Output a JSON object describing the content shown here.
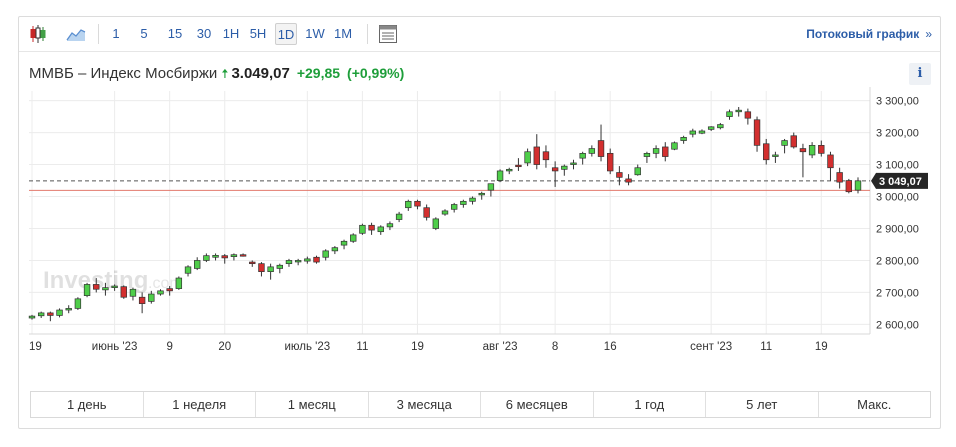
{
  "toolbar": {
    "chart_icons": [
      {
        "icon": "candlestick-chart-icon"
      },
      {
        "icon": "area-chart-icon"
      }
    ],
    "intervals": [
      "1",
      "5",
      "15",
      "30",
      "1H",
      "5H",
      "1D",
      "1W",
      "1M"
    ],
    "active_interval": "1D",
    "settings_icon": "chart-settings-icon",
    "stream_label": "Потоковый график",
    "stream_arrow": "»"
  },
  "header": {
    "name": "ММВБ – Индекс Мосбиржи",
    "arrow": "🠅",
    "price": "3.049,07",
    "change": "+29,85",
    "change_pct": "(+0,99%)",
    "info_label": "i"
  },
  "chart_data": {
    "type": "candlestick",
    "watermark": "Investing",
    "watermark_suffix": ".com",
    "current_price_label": "3 049,07",
    "current_price": 3049.07,
    "previous_close": 3019.22,
    "colors": {
      "up": "#4fce4a",
      "down": "#d32f2f",
      "price_line": "#555555",
      "prev_close_line": "#e37a6d",
      "grid": "#ececec"
    },
    "ylim": [
      2570,
      3330
    ],
    "yticks": [
      {
        "value": 3300,
        "label": "3 300,00"
      },
      {
        "value": 3200,
        "label": "3 200,00"
      },
      {
        "value": 3100,
        "label": "3 100,00"
      },
      {
        "value": 3000,
        "label": "3 000,00"
      },
      {
        "value": 2900,
        "label": "2 900,00"
      },
      {
        "value": 2800,
        "label": "2 800,00"
      },
      {
        "value": 2700,
        "label": "2 700,00"
      },
      {
        "value": 2600,
        "label": "2 600,00"
      }
    ],
    "xticks": [
      {
        "index": 0,
        "label": "19"
      },
      {
        "index": 9,
        "label": "июнь '23"
      },
      {
        "index": 15,
        "label": "9"
      },
      {
        "index": 21,
        "label": "20"
      },
      {
        "index": 30,
        "label": "июль '23"
      },
      {
        "index": 36,
        "label": "11"
      },
      {
        "index": 42,
        "label": "19"
      },
      {
        "index": 51,
        "label": "авг '23"
      },
      {
        "index": 57,
        "label": "8"
      },
      {
        "index": 63,
        "label": "16"
      },
      {
        "index": 74,
        "label": "сент '23"
      },
      {
        "index": 80,
        "label": "11"
      },
      {
        "index": 86,
        "label": "19"
      }
    ],
    "candles": [
      [
        2620,
        2630,
        2615,
        2626
      ],
      [
        2627,
        2640,
        2620,
        2636
      ],
      [
        2636,
        2640,
        2610,
        2628
      ],
      [
        2628,
        2650,
        2622,
        2645
      ],
      [
        2645,
        2660,
        2635,
        2650
      ],
      [
        2650,
        2685,
        2645,
        2680
      ],
      [
        2690,
        2730,
        2685,
        2725
      ],
      [
        2725,
        2745,
        2700,
        2710
      ],
      [
        2708,
        2730,
        2690,
        2715
      ],
      [
        2715,
        2725,
        2705,
        2720
      ],
      [
        2718,
        2722,
        2680,
        2685
      ],
      [
        2688,
        2715,
        2675,
        2710
      ],
      [
        2685,
        2700,
        2635,
        2665
      ],
      [
        2672,
        2705,
        2665,
        2695
      ],
      [
        2695,
        2710,
        2690,
        2705
      ],
      [
        2712,
        2720,
        2690,
        2705
      ],
      [
        2712,
        2750,
        2708,
        2745
      ],
      [
        2760,
        2785,
        2750,
        2780
      ],
      [
        2775,
        2810,
        2770,
        2800
      ],
      [
        2800,
        2822,
        2795,
        2815
      ],
      [
        2810,
        2822,
        2800,
        2816
      ],
      [
        2815,
        2820,
        2790,
        2808
      ],
      [
        2812,
        2822,
        2800,
        2818
      ],
      [
        2818,
        2822,
        2812,
        2815
      ],
      [
        2795,
        2800,
        2780,
        2790
      ],
      [
        2790,
        2795,
        2750,
        2765
      ],
      [
        2765,
        2790,
        2740,
        2780
      ],
      [
        2775,
        2790,
        2760,
        2785
      ],
      [
        2790,
        2805,
        2780,
        2800
      ],
      [
        2798,
        2805,
        2785,
        2800
      ],
      [
        2798,
        2812,
        2790,
        2805
      ],
      [
        2810,
        2815,
        2790,
        2795
      ],
      [
        2810,
        2835,
        2800,
        2830
      ],
      [
        2830,
        2845,
        2820,
        2840
      ],
      [
        2848,
        2865,
        2835,
        2860
      ],
      [
        2860,
        2885,
        2855,
        2880
      ],
      [
        2885,
        2915,
        2880,
        2910
      ],
      [
        2910,
        2918,
        2880,
        2895
      ],
      [
        2890,
        2910,
        2880,
        2905
      ],
      [
        2905,
        2922,
        2895,
        2915
      ],
      [
        2928,
        2952,
        2920,
        2945
      ],
      [
        2965,
        2990,
        2955,
        2985
      ],
      [
        2985,
        2990,
        2960,
        2970
      ],
      [
        2965,
        2975,
        2925,
        2935
      ],
      [
        2900,
        2935,
        2895,
        2930
      ],
      [
        2945,
        2960,
        2940,
        2955
      ],
      [
        2960,
        2980,
        2950,
        2975
      ],
      [
        2975,
        2990,
        2965,
        2985
      ],
      [
        2985,
        3000,
        2975,
        2995
      ],
      [
        3005,
        3015,
        2990,
        3010
      ],
      [
        3020,
        3040,
        3000,
        3040
      ],
      [
        3050,
        3085,
        3045,
        3080
      ],
      [
        3080,
        3090,
        3070,
        3085
      ],
      [
        3098,
        3120,
        3080,
        3095
      ],
      [
        3105,
        3150,
        3095,
        3140
      ],
      [
        3155,
        3195,
        3085,
        3100
      ],
      [
        3140,
        3160,
        3090,
        3115
      ],
      [
        3090,
        3110,
        3030,
        3080
      ],
      [
        3085,
        3100,
        3065,
        3095
      ],
      [
        3100,
        3115,
        3085,
        3105
      ],
      [
        3120,
        3140,
        3100,
        3135
      ],
      [
        3135,
        3160,
        3125,
        3150
      ],
      [
        3175,
        3225,
        3110,
        3125
      ],
      [
        3135,
        3150,
        3070,
        3080
      ],
      [
        3075,
        3095,
        3035,
        3060
      ],
      [
        3055,
        3070,
        3035,
        3045
      ],
      [
        3068,
        3100,
        3065,
        3090
      ],
      [
        3125,
        3140,
        3105,
        3135
      ],
      [
        3135,
        3160,
        3120,
        3150
      ],
      [
        3155,
        3170,
        3110,
        3125
      ],
      [
        3148,
        3172,
        3145,
        3168
      ],
      [
        3175,
        3190,
        3165,
        3185
      ],
      [
        3195,
        3212,
        3185,
        3205
      ],
      [
        3198,
        3210,
        3195,
        3205
      ],
      [
        3210,
        3220,
        3205,
        3218
      ],
      [
        3215,
        3230,
        3210,
        3225
      ],
      [
        3250,
        3272,
        3240,
        3265
      ],
      [
        3265,
        3280,
        3250,
        3270
      ],
      [
        3265,
        3275,
        3225,
        3245
      ],
      [
        3240,
        3250,
        3140,
        3160
      ],
      [
        3165,
        3180,
        3100,
        3115
      ],
      [
        3125,
        3140,
        3105,
        3130
      ],
      [
        3160,
        3180,
        3135,
        3175
      ],
      [
        3190,
        3200,
        3150,
        3155
      ],
      [
        3150,
        3165,
        3060,
        3140
      ],
      [
        3130,
        3170,
        3120,
        3160
      ],
      [
        3160,
        3175,
        3125,
        3135
      ],
      [
        3130,
        3140,
        3050,
        3090
      ],
      [
        3075,
        3090,
        3025,
        3045
      ],
      [
        3050,
        3055,
        3010,
        3015
      ],
      [
        3020,
        3060,
        3010,
        3049
      ]
    ]
  },
  "ranges": [
    "1 день",
    "1 неделя",
    "1 месяц",
    "3 месяца",
    "6 месяцев",
    "1 год",
    "5 лет",
    "Макс."
  ]
}
